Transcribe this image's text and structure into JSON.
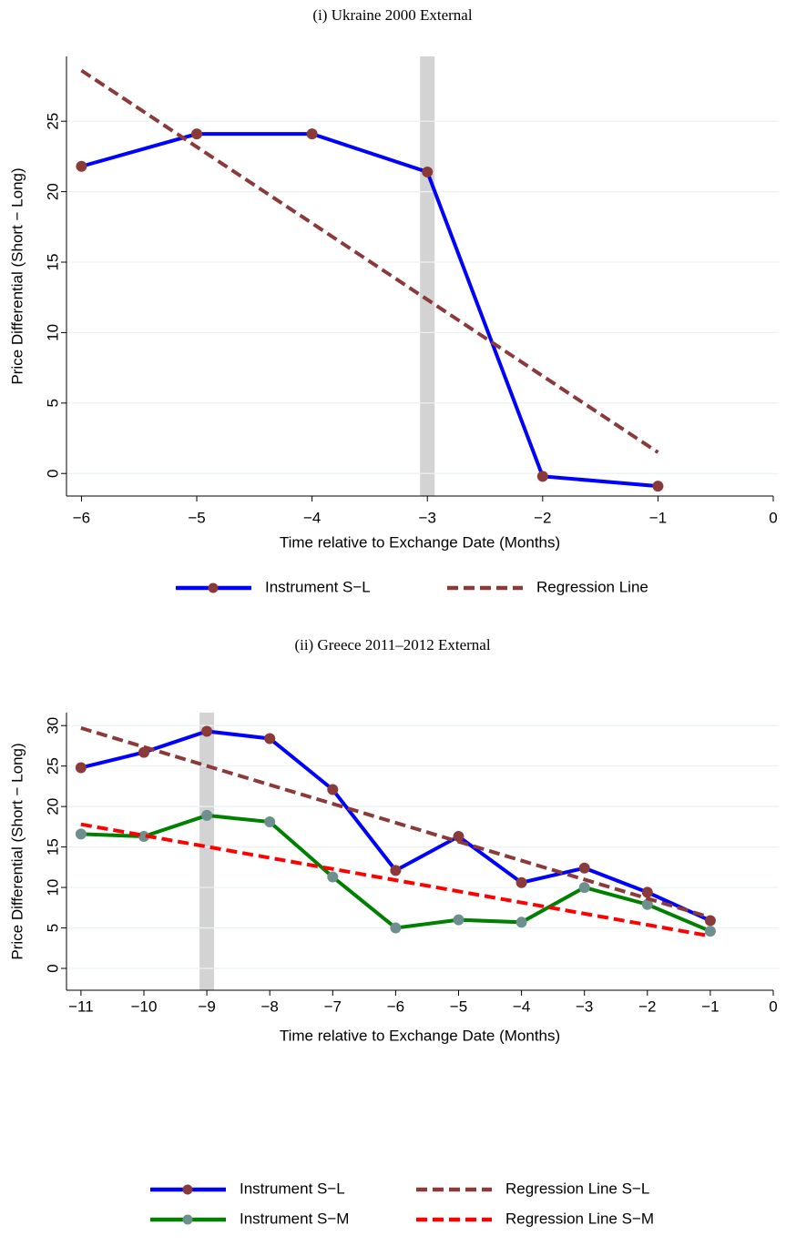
{
  "chart_data": [
    {
      "type": "line",
      "title": "(i) Ukraine 2000 External",
      "x_label": "Time relative to Exchange Date (Months)",
      "y_label": "Price Differential (Short − Long)",
      "xlim": [
        -6.13,
        0
      ],
      "ylim": [
        -1.6,
        29.6
      ],
      "xticks": [
        {
          "value": -6,
          "label": "−6"
        },
        {
          "value": -5,
          "label": "−5"
        },
        {
          "value": -4,
          "label": "−4"
        },
        {
          "value": -3,
          "label": "−3"
        },
        {
          "value": -2,
          "label": "−2"
        },
        {
          "value": -1,
          "label": "−1"
        },
        0
      ],
      "yticks": [
        0,
        5,
        10,
        15,
        20,
        25
      ],
      "grid": true,
      "shade_x": -3,
      "series": [
        {
          "name": "Instrument S−L",
          "color": "#0000ff",
          "marker_color": "#8b3a3a",
          "x": [
            -6,
            -5,
            -4,
            -3,
            -2,
            -1
          ],
          "values": [
            21.8,
            24.1,
            24.1,
            21.4,
            -0.2,
            -0.9
          ]
        },
        {
          "name": "Regression Line",
          "color": "#8b3a3a",
          "dashed": true,
          "x": [
            -6,
            -1
          ],
          "values": [
            28.6,
            1.5
          ]
        }
      ]
    },
    {
      "type": "line",
      "title": "(ii) Greece 2011–2012 External",
      "x_label": "Time relative to Exchange Date (Months)",
      "y_label": "Price Differential (Short − Long)",
      "xlim": [
        -11.23,
        0
      ],
      "ylim": [
        -2.7,
        31.6
      ],
      "xticks": [
        {
          "value": -11,
          "label": "−11"
        },
        {
          "value": -10,
          "label": "−10"
        },
        {
          "value": -9,
          "label": "−9"
        },
        {
          "value": -8,
          "label": "−8"
        },
        {
          "value": -7,
          "label": "−7"
        },
        {
          "value": -6,
          "label": "−6"
        },
        {
          "value": -5,
          "label": "−5"
        },
        {
          "value": -4,
          "label": "−4"
        },
        {
          "value": -3,
          "label": "−3"
        },
        {
          "value": -2,
          "label": "−2"
        },
        {
          "value": -1,
          "label": "−1"
        },
        0
      ],
      "yticks": [
        0,
        5,
        10,
        15,
        20,
        25,
        30
      ],
      "grid": true,
      "shade_x": -9,
      "series": [
        {
          "name": "Instrument S−L",
          "color": "#0000ff",
          "marker_color": "#8b3a3a",
          "x": [
            -11,
            -10,
            -9,
            -8,
            -7,
            -6,
            -5,
            -4,
            -3,
            -2,
            -1
          ],
          "values": [
            24.8,
            26.7,
            29.3,
            28.4,
            22.1,
            12.1,
            16.3,
            10.6,
            12.4,
            9.4,
            5.9
          ]
        },
        {
          "name": "Instrument S−M",
          "color": "#008000",
          "marker_color": "#6f8f8f",
          "x": [
            -11,
            -10,
            -9,
            -8,
            -7,
            -6,
            -5,
            -4,
            -3,
            -2,
            -1
          ],
          "values": [
            16.6,
            16.3,
            18.9,
            18.1,
            11.3,
            5.0,
            6.0,
            5.7,
            10.0,
            7.9,
            4.6
          ]
        },
        {
          "name": "Regression Line S−L",
          "color": "#8b3a3a",
          "dashed": true,
          "x": [
            -11,
            -1
          ],
          "values": [
            29.7,
            6.3
          ]
        },
        {
          "name": "Regression Line S−M",
          "color": "#ff0000",
          "dashed": true,
          "x": [
            -11,
            -1
          ],
          "values": [
            17.8,
            4.0
          ]
        }
      ]
    }
  ]
}
